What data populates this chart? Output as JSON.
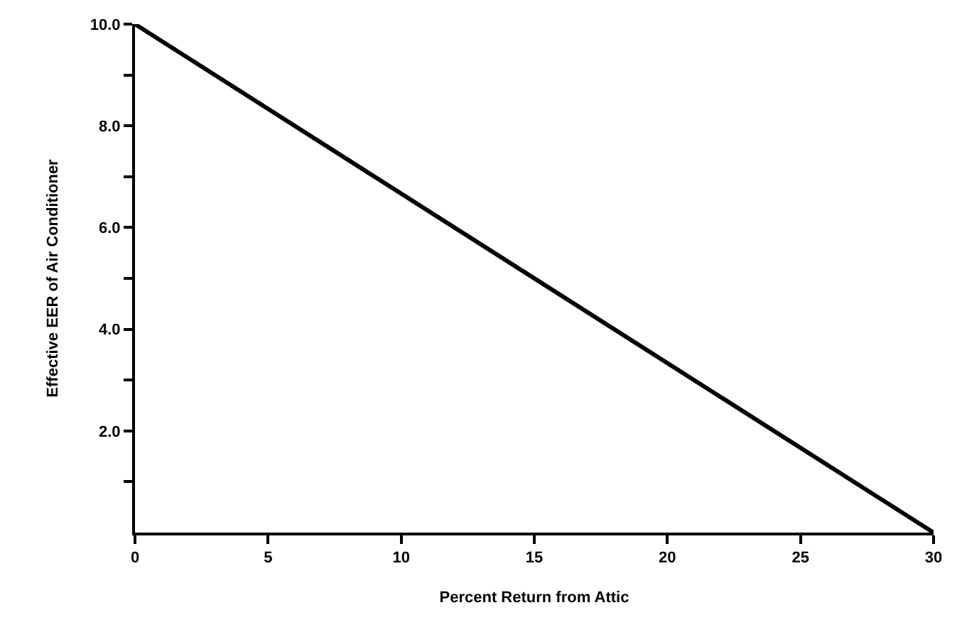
{
  "chart_data": {
    "type": "line",
    "xlabel": "Percent Return from Attic",
    "ylabel": "Effective EER of Air Conditioner",
    "x": [
      0,
      30
    ],
    "series": [
      {
        "color": "#000000",
        "values": [
          10,
          0
        ]
      }
    ],
    "xlim": [
      0,
      30
    ],
    "xticks": [
      0,
      5,
      10,
      15,
      20,
      25,
      30
    ],
    "ylim": [
      0,
      10
    ],
    "yticks": [
      {
        "value": 1,
        "label": null
      },
      {
        "value": 2,
        "label": "2.0"
      },
      {
        "value": 3,
        "label": null
      },
      {
        "value": 4,
        "label": "4.0"
      },
      {
        "value": 5,
        "label": null
      },
      {
        "value": 6,
        "label": "6.0"
      },
      {
        "value": 7,
        "label": null
      },
      {
        "value": 8,
        "label": "8.0"
      },
      {
        "value": 9,
        "label": null
      },
      {
        "value": 10,
        "label": "10.0"
      }
    ],
    "grid": false,
    "marker": "none",
    "line_style": "solid"
  }
}
